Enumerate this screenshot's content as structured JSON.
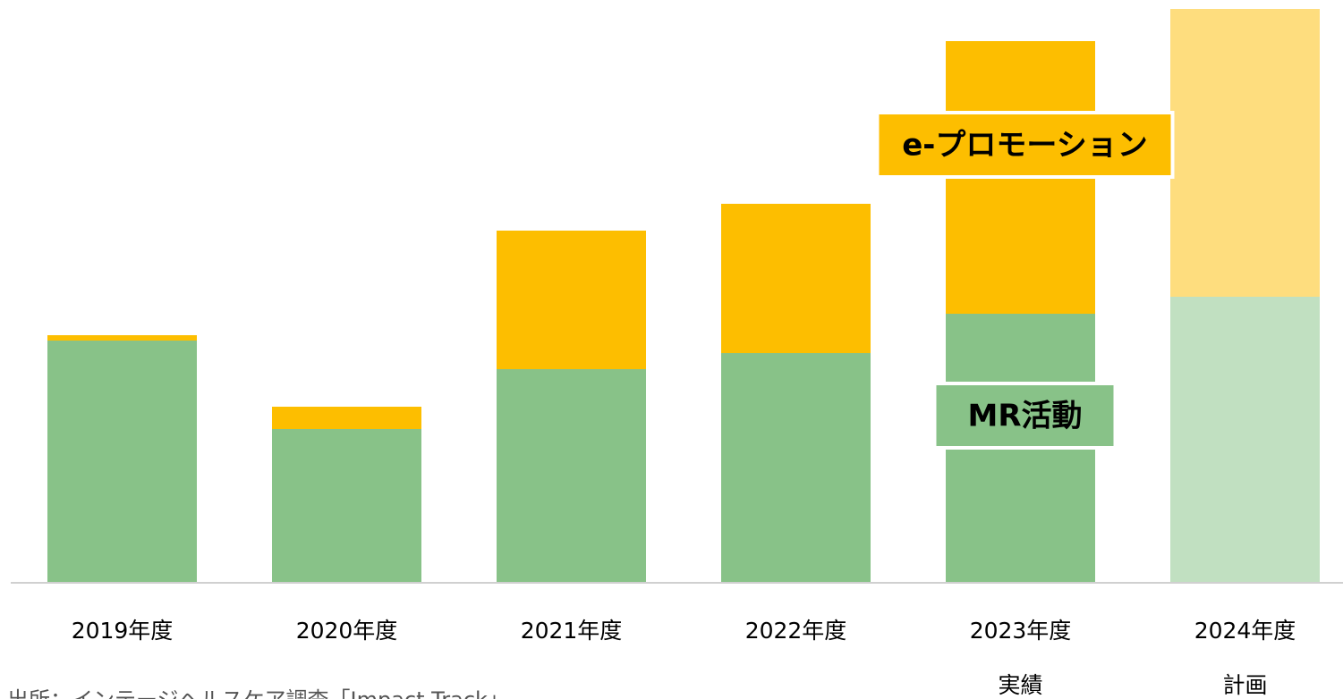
{
  "chart_data": {
    "type": "stacked_bar",
    "categories": [
      "2019年度",
      "2020年度",
      "2021年度",
      "2022年度",
      "2023年度",
      "2024年度"
    ],
    "sublabels": [
      null,
      null,
      null,
      null,
      "実績",
      "計画"
    ],
    "series": [
      {
        "name": "MR活動",
        "color": "#88c288",
        "colors": [
          "#88c288",
          "#88c288",
          "#88c288",
          "#88c288",
          "#88c288",
          "#c1e0c1"
        ],
        "values": [
          271,
          172,
          239,
          257,
          301,
          320
        ]
      },
      {
        "name": "e-プロモーション",
        "color": "#fdbe00",
        "colors": [
          "#fdbe00",
          "#fdbe00",
          "#fdbe00",
          "#fdbe00",
          "#fdbe00",
          "#fedd7e"
        ],
        "values": [
          6,
          25,
          155,
          167,
          305,
          322
        ]
      }
    ],
    "ylim": [
      0,
      650
    ],
    "source": "出所：インテージヘルスケア調査「Impact Track」"
  }
}
